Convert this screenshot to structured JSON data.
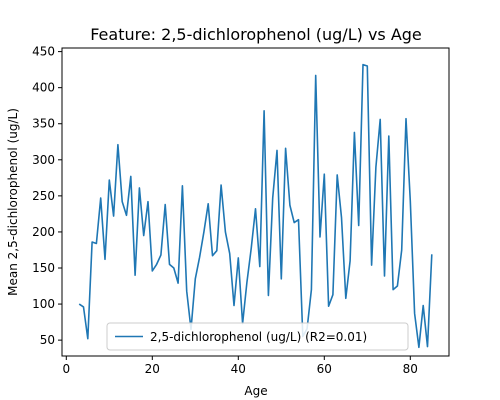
{
  "chart_data": {
    "type": "line",
    "title": "Feature: 2,5-dichlorophenol (ug/L) vs Age",
    "xlabel": "Age",
    "ylabel": "Mean 2,5-dichlorophenol (ug/L)",
    "xlim": [
      -1,
      89
    ],
    "ylim": [
      28,
      455
    ],
    "xticks": [
      0,
      20,
      40,
      60,
      80
    ],
    "yticks": [
      50,
      100,
      150,
      200,
      250,
      300,
      350,
      400,
      450
    ],
    "grid": false,
    "legend_position": "bottom-center",
    "series": [
      {
        "name": "2,5-dichlorophenol (ug/L) (R2=0.01)",
        "color": "#1f77b4",
        "x": [
          3,
          4,
          5,
          6,
          7,
          8,
          9,
          10,
          11,
          12,
          13,
          14,
          15,
          16,
          17,
          18,
          19,
          20,
          21,
          22,
          23,
          24,
          25,
          26,
          27,
          28,
          29,
          30,
          31,
          32,
          33,
          34,
          35,
          36,
          37,
          38,
          39,
          40,
          41,
          42,
          43,
          44,
          45,
          46,
          47,
          48,
          49,
          50,
          51,
          52,
          53,
          54,
          55,
          56,
          57,
          58,
          59,
          60,
          61,
          62,
          63,
          64,
          65,
          66,
          67,
          68,
          69,
          70,
          71,
          72,
          73,
          74,
          75,
          76,
          77,
          78,
          79,
          80,
          81,
          82,
          83,
          84,
          85
        ],
        "y": [
          100,
          96,
          52,
          186,
          184,
          247,
          162,
          272,
          222,
          321,
          242,
          223,
          277,
          140,
          261,
          195,
          242,
          146,
          155,
          168,
          238,
          155,
          150,
          129,
          264,
          118,
          65,
          135,
          165,
          200,
          239,
          167,
          174,
          265,
          200,
          170,
          98,
          164,
          73,
          130,
          177,
          232,
          152,
          368,
          112,
          247,
          313,
          135,
          316,
          237,
          213,
          217,
          55,
          66,
          120,
          417,
          193,
          280,
          97,
          113,
          279,
          220,
          108,
          160,
          338,
          209,
          432,
          430,
          154,
          290,
          356,
          139,
          333,
          120,
          125,
          175,
          357,
          243,
          87,
          40,
          98,
          41,
          169
        ]
      }
    ]
  }
}
